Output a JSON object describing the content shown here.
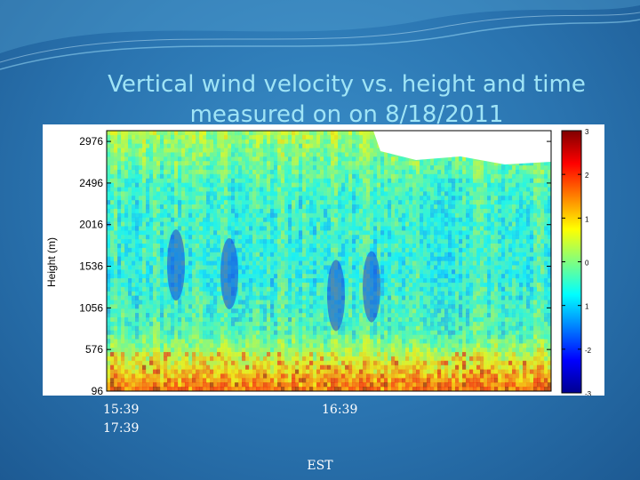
{
  "slide": {
    "title": "Vertical wind velocity vs. height and time\nmeasured on on 8/18/2011",
    "time_labels": [
      "15:39",
      "17:39",
      "16:39"
    ],
    "footer_unit": "EST",
    "colors": {
      "background": "#2a74b0",
      "title": "#9fe4f6",
      "label": "#ffffff"
    }
  },
  "chart_data": {
    "type": "heatmap",
    "title": "",
    "xlabel": "",
    "ylabel": "Height (m)",
    "y_ticks": [
      96,
      576,
      1056,
      1536,
      2016,
      2496,
      2976
    ],
    "ylim": [
      96,
      3100
    ],
    "colorbar": {
      "ticks": [
        3,
        2,
        1,
        0,
        1,
        -2,
        -3
      ],
      "range": [
        -3,
        3
      ],
      "colormap": "jet"
    },
    "bottom_tick_labels_clipped": true,
    "grid": false,
    "legend": "colorbar right"
  }
}
